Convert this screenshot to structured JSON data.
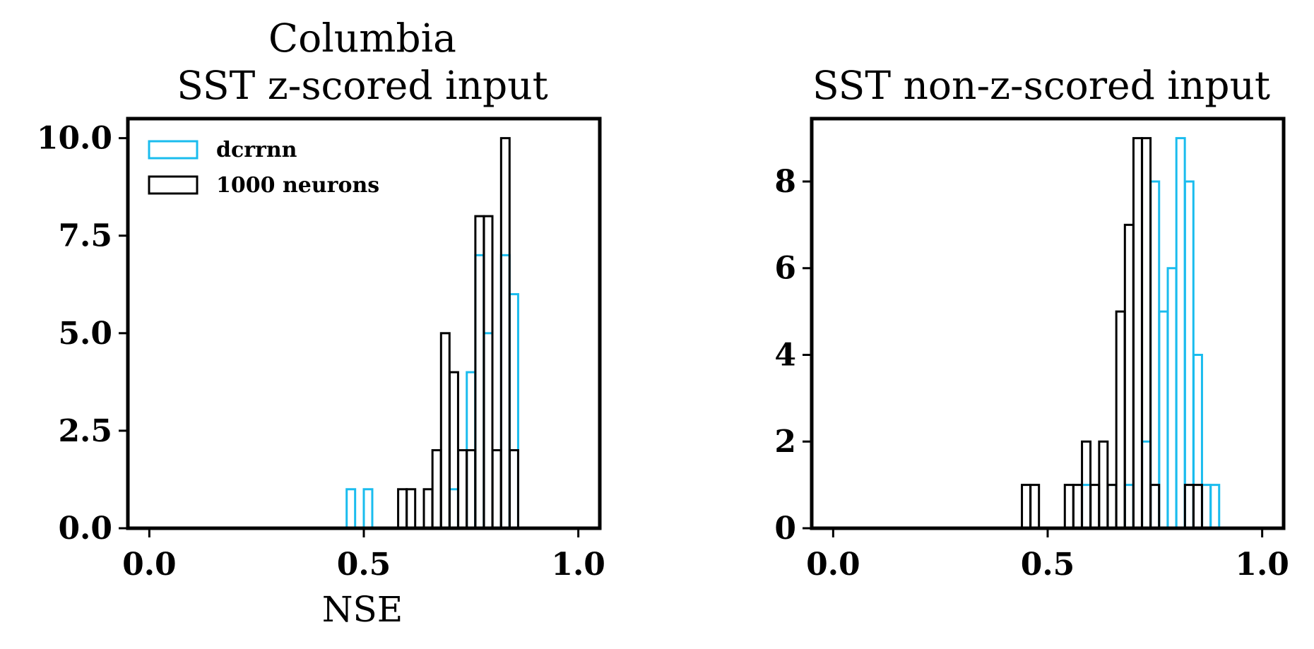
{
  "chart_data": [
    {
      "type": "histogram",
      "title_line1": "Columbia",
      "title_line2": "SST z-scored input",
      "xlabel": "NSE",
      "ylabel": "",
      "xlim": [
        -0.05,
        1.05
      ],
      "ylim": [
        0,
        10.5
      ],
      "xticks": [
        0.0,
        0.5,
        1.0
      ],
      "xtick_labels": [
        "0.0",
        "0.5",
        "1.0"
      ],
      "yticks": [
        0,
        2.5,
        5,
        7.5,
        10
      ],
      "ytick_labels": [
        "0.0",
        "2.5",
        "5.0",
        "7.5",
        "10.0"
      ],
      "bin_width": 0.0197,
      "legend": {
        "location": "upper left",
        "entries": [
          "dcrrnn",
          "1000 neurons"
        ]
      },
      "series": [
        {
          "name": "dcrrnn",
          "color": "#1ABCEE",
          "bins": [
            {
              "x": 0.46,
              "count": 1
            },
            {
              "x": 0.5,
              "count": 1
            },
            {
              "x": 0.7,
              "count": 1
            },
            {
              "x": 0.74,
              "count": 4
            },
            {
              "x": 0.76,
              "count": 7
            },
            {
              "x": 0.78,
              "count": 5
            },
            {
              "x": 0.82,
              "count": 7
            },
            {
              "x": 0.84,
              "count": 6
            }
          ]
        },
        {
          "name": "1000 neurons",
          "color": "#000000",
          "bins": [
            {
              "x": 0.58,
              "count": 1
            },
            {
              "x": 0.6,
              "count": 1
            },
            {
              "x": 0.64,
              "count": 1
            },
            {
              "x": 0.66,
              "count": 2
            },
            {
              "x": 0.68,
              "count": 5
            },
            {
              "x": 0.7,
              "count": 4
            },
            {
              "x": 0.72,
              "count": 2
            },
            {
              "x": 0.74,
              "count": 2
            },
            {
              "x": 0.76,
              "count": 8
            },
            {
              "x": 0.78,
              "count": 8
            },
            {
              "x": 0.8,
              "count": 2
            },
            {
              "x": 0.82,
              "count": 10
            },
            {
              "x": 0.84,
              "count": 2
            }
          ]
        }
      ]
    },
    {
      "type": "histogram",
      "title_line1": "",
      "title_line2": "SST non-z-scored input",
      "xlabel": "",
      "ylabel": "",
      "xlim": [
        -0.05,
        1.05
      ],
      "ylim": [
        0,
        9.45
      ],
      "xticks": [
        0.0,
        0.5,
        1.0
      ],
      "xtick_labels": [
        "0.0",
        "0.5",
        "1.0"
      ],
      "yticks": [
        0,
        2,
        4,
        6,
        8
      ],
      "ytick_labels": [
        "0",
        "2",
        "4",
        "6",
        "8"
      ],
      "bin_width": 0.0197,
      "series": [
        {
          "name": "dcrrnn",
          "color": "#1ABCEE",
          "bins": [
            {
              "x": 0.58,
              "count": 1
            },
            {
              "x": 0.64,
              "count": 1
            },
            {
              "x": 0.68,
              "count": 1
            },
            {
              "x": 0.72,
              "count": 2
            },
            {
              "x": 0.74,
              "count": 8
            },
            {
              "x": 0.76,
              "count": 5
            },
            {
              "x": 0.78,
              "count": 6
            },
            {
              "x": 0.8,
              "count": 9
            },
            {
              "x": 0.82,
              "count": 8
            },
            {
              "x": 0.84,
              "count": 4
            },
            {
              "x": 0.86,
              "count": 1
            },
            {
              "x": 0.88,
              "count": 1
            }
          ]
        },
        {
          "name": "1000 neurons",
          "color": "#000000",
          "bins": [
            {
              "x": 0.44,
              "count": 1
            },
            {
              "x": 0.46,
              "count": 1
            },
            {
              "x": 0.54,
              "count": 1
            },
            {
              "x": 0.56,
              "count": 1
            },
            {
              "x": 0.58,
              "count": 2
            },
            {
              "x": 0.6,
              "count": 1
            },
            {
              "x": 0.62,
              "count": 2
            },
            {
              "x": 0.64,
              "count": 1
            },
            {
              "x": 0.66,
              "count": 5
            },
            {
              "x": 0.68,
              "count": 7
            },
            {
              "x": 0.7,
              "count": 9
            },
            {
              "x": 0.72,
              "count": 9
            },
            {
              "x": 0.74,
              "count": 1
            },
            {
              "x": 0.82,
              "count": 1
            },
            {
              "x": 0.84,
              "count": 1
            }
          ]
        }
      ]
    }
  ]
}
